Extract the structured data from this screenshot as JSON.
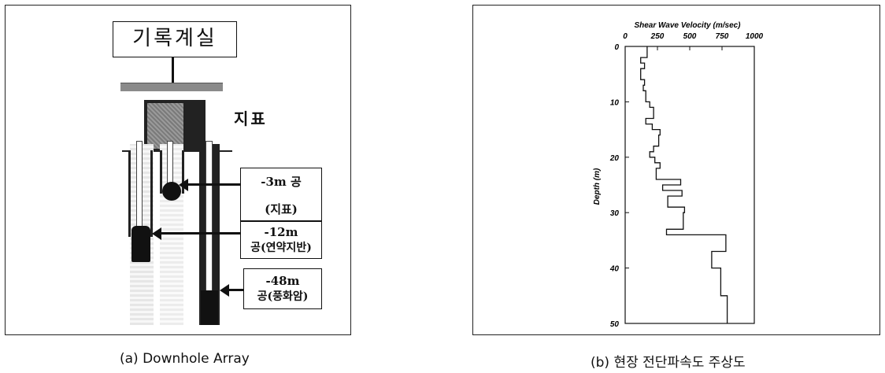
{
  "panel_a": {
    "recording_room": "기록계실",
    "surface": "지표",
    "labels": [
      {
        "depth": "-3m 공",
        "desc": "(지표)"
      },
      {
        "depth": "-12m",
        "desc": "공(연약지반)"
      },
      {
        "depth": "-48m",
        "desc": "공(풍화암)"
      }
    ],
    "caption": "(a) Downhole Array"
  },
  "panel_b": {
    "caption": "(b) 현장 전단파속도 주상도",
    "chart_data": {
      "type": "line",
      "title": "Shear Wave Velocity (m/sec)",
      "xlabel": "Shear Wave Velocity (m/sec)",
      "ylabel": "Depth (m)",
      "xlim": [
        0,
        1000
      ],
      "ylim": [
        0,
        50
      ],
      "y_inverted": true,
      "x_ticks": [
        "0",
        "250",
        "500",
        "750",
        "1000"
      ],
      "y_ticks": [
        "0",
        "10",
        "20",
        "30",
        "40",
        "50"
      ],
      "grid": false,
      "profile": [
        [
          170,
          0
        ],
        [
          170,
          2
        ],
        [
          120,
          2
        ],
        [
          120,
          3
        ],
        [
          150,
          3
        ],
        [
          150,
          4
        ],
        [
          120,
          4
        ],
        [
          120,
          6
        ],
        [
          150,
          6
        ],
        [
          150,
          7
        ],
        [
          140,
          7
        ],
        [
          140,
          8
        ],
        [
          160,
          8
        ],
        [
          160,
          10
        ],
        [
          190,
          10
        ],
        [
          190,
          11
        ],
        [
          220,
          11
        ],
        [
          220,
          13
        ],
        [
          160,
          13
        ],
        [
          160,
          14
        ],
        [
          210,
          14
        ],
        [
          210,
          15
        ],
        [
          270,
          15
        ],
        [
          270,
          16
        ],
        [
          260,
          16
        ],
        [
          260,
          18
        ],
        [
          220,
          18
        ],
        [
          220,
          19
        ],
        [
          190,
          19
        ],
        [
          190,
          20
        ],
        [
          230,
          20
        ],
        [
          230,
          21
        ],
        [
          270,
          21
        ],
        [
          270,
          22
        ],
        [
          240,
          22
        ],
        [
          240,
          24
        ],
        [
          430,
          24
        ],
        [
          430,
          25
        ],
        [
          290,
          25
        ],
        [
          290,
          26
        ],
        [
          440,
          26
        ],
        [
          440,
          27
        ],
        [
          330,
          27
        ],
        [
          330,
          28
        ],
        [
          330,
          28
        ],
        [
          330,
          29
        ],
        [
          460,
          29
        ],
        [
          460,
          30
        ],
        [
          450,
          30
        ],
        [
          450,
          33
        ],
        [
          320,
          33
        ],
        [
          320,
          34
        ],
        [
          780,
          34
        ],
        [
          780,
          37
        ],
        [
          670,
          37
        ],
        [
          670,
          40
        ],
        [
          740,
          40
        ],
        [
          740,
          45
        ],
        [
          790,
          45
        ],
        [
          790,
          50
        ]
      ]
    }
  }
}
